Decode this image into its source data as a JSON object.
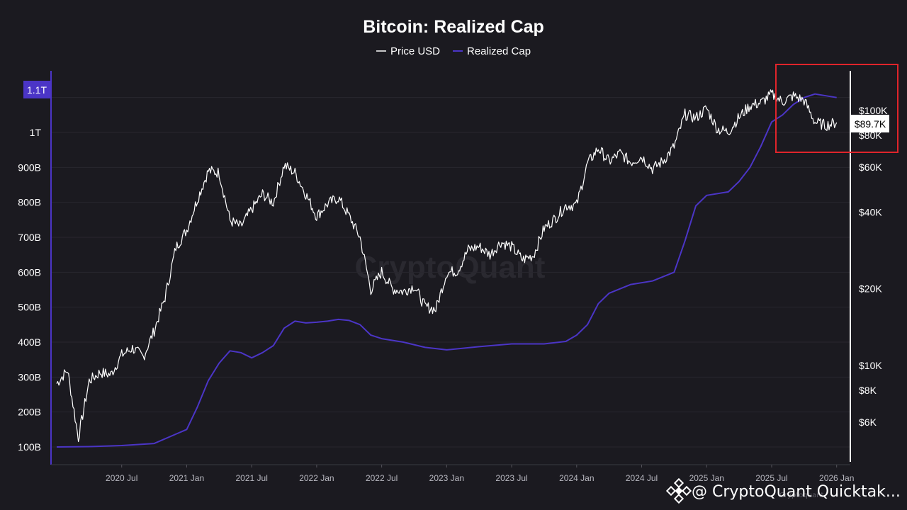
{
  "chart_data": {
    "type": "line",
    "title": "Bitcoin: Realized Cap",
    "legend": [
      {
        "name": "Price USD",
        "color": "#ffffff"
      },
      {
        "name": "Realized Cap",
        "color": "#4b35c6"
      }
    ],
    "legend_position": "top-center",
    "grid": true,
    "x_ticks": [
      "2020 Jul",
      "2021 Jan",
      "2021 Jul",
      "2022 Jan",
      "2022 Jul",
      "2023 Jan",
      "2023 Jul",
      "2024 Jan",
      "2024 Jul",
      "2025 Jan",
      "2025 Jul",
      "2026 Jan"
    ],
    "x_range": [
      "2020-01",
      "2026-02"
    ],
    "left_axis": {
      "ticks": [
        "100B",
        "200B",
        "300B",
        "400B",
        "500B",
        "600B",
        "700B",
        "800B",
        "900B",
        "1T"
      ],
      "tick_values": [
        100,
        200,
        300,
        400,
        500,
        600,
        700,
        800,
        900,
        1000
      ],
      "unit": "B",
      "range": [
        60,
        1140
      ],
      "current_label": "1.1T",
      "current_value": 1100
    },
    "right_axis": {
      "scale": "log",
      "ticks": [
        "$6K",
        "$8K",
        "$10K",
        "$20K",
        "$40K",
        "$60K",
        "$80K",
        "$100K"
      ],
      "tick_values": [
        6000,
        8000,
        10000,
        20000,
        40000,
        60000,
        80000,
        100000
      ],
      "current_label": "$89.7K",
      "current_value": 89700
    },
    "series": [
      {
        "name": "Price USD",
        "axis": "right",
        "color": "#ffffff",
        "x": [
          "2020-01",
          "2020-02",
          "2020-03",
          "2020-04",
          "2020-05",
          "2020-06",
          "2020-07",
          "2020-08",
          "2020-09",
          "2020-10",
          "2020-11",
          "2020-12",
          "2021-01",
          "2021-02",
          "2021-03",
          "2021-04",
          "2021-05",
          "2021-06",
          "2021-07",
          "2021-08",
          "2021-09",
          "2021-10",
          "2021-11",
          "2021-12",
          "2022-01",
          "2022-02",
          "2022-03",
          "2022-04",
          "2022-05",
          "2022-06",
          "2022-07",
          "2022-08",
          "2022-09",
          "2022-10",
          "2022-11",
          "2022-12",
          "2023-01",
          "2023-02",
          "2023-03",
          "2023-04",
          "2023-05",
          "2023-06",
          "2023-07",
          "2023-08",
          "2023-09",
          "2023-10",
          "2023-11",
          "2023-12",
          "2024-01",
          "2024-02",
          "2024-03",
          "2024-04",
          "2024-05",
          "2024-06",
          "2024-07",
          "2024-08",
          "2024-09",
          "2024-10",
          "2024-11",
          "2024-12",
          "2025-01",
          "2025-02",
          "2025-03",
          "2025-04",
          "2025-05",
          "2025-06",
          "2025-07",
          "2025-08",
          "2025-09",
          "2025-10",
          "2025-11",
          "2025-12",
          "2026-01"
        ],
        "values": [
          8500,
          9600,
          5200,
          8700,
          9400,
          9200,
          11000,
          11700,
          10800,
          13700,
          18500,
          29000,
          34000,
          45000,
          58000,
          57000,
          37000,
          35000,
          41000,
          47000,
          43500,
          61000,
          57000,
          47000,
          38500,
          43000,
          45500,
          38500,
          31800,
          19800,
          23300,
          20000,
          19500,
          20500,
          17000,
          16600,
          23100,
          23500,
          28500,
          29300,
          27200,
          30500,
          29200,
          26000,
          27000,
          34500,
          37700,
          42300,
          42600,
          62000,
          71000,
          63000,
          68000,
          62700,
          66000,
          59000,
          63500,
          72300,
          96500,
          93500,
          102000,
          84400,
          82500,
          94200,
          104600,
          107100,
          115700,
          108200,
          114000,
          109500,
          90000,
          87500,
          89700
        ]
      },
      {
        "name": "Realized Cap",
        "axis": "left",
        "color": "#4b35c6",
        "x": [
          "2020-01",
          "2020-04",
          "2020-07",
          "2020-10",
          "2021-01",
          "2021-02",
          "2021-03",
          "2021-04",
          "2021-05",
          "2021-06",
          "2021-07",
          "2021-08",
          "2021-09",
          "2021-10",
          "2021-11",
          "2021-12",
          "2022-01",
          "2022-02",
          "2022-03",
          "2022-04",
          "2022-05",
          "2022-06",
          "2022-07",
          "2022-09",
          "2022-11",
          "2023-01",
          "2023-04",
          "2023-07",
          "2023-10",
          "2023-12",
          "2024-01",
          "2024-02",
          "2024-03",
          "2024-04",
          "2024-06",
          "2024-08",
          "2024-10",
          "2024-11",
          "2024-12",
          "2025-01",
          "2025-03",
          "2025-04",
          "2025-05",
          "2025-06",
          "2025-07",
          "2025-08",
          "2025-09",
          "2025-10",
          "2025-11",
          "2025-12",
          "2026-01"
        ],
        "values": [
          100,
          101,
          104,
          110,
          150,
          215,
          290,
          340,
          375,
          370,
          355,
          370,
          390,
          440,
          460,
          455,
          457,
          460,
          465,
          462,
          450,
          420,
          410,
          400,
          385,
          378,
          387,
          395,
          395,
          402,
          420,
          450,
          510,
          540,
          565,
          575,
          600,
          690,
          790,
          820,
          830,
          860,
          900,
          960,
          1030,
          1050,
          1080,
          1100,
          1110,
          1105,
          1100
        ]
      }
    ],
    "annotations": {
      "highlight_box": "2025 Jul – 2026 Jan region (red outline)",
      "watermark": "CryptoQuant"
    }
  },
  "footer": {
    "handle": "@ CryptoQuant Quicktak...",
    "small_text": "Cryptoquant"
  },
  "colors": {
    "background": "#1b1a20",
    "grid": "#2a2930",
    "realized_cap": "#4b35c6",
    "highlight": "#e0242b"
  }
}
